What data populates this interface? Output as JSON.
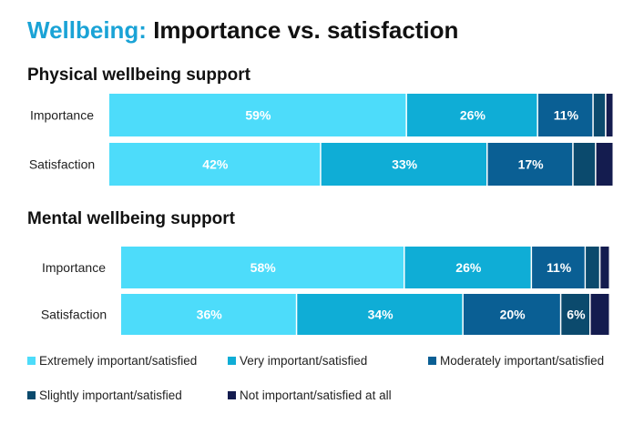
{
  "title": {
    "accent": "Wellbeing:",
    "rest": "Importance vs. satisfaction"
  },
  "colors": {
    "accent": "#1aa3d6",
    "segments": [
      "#4ddcfa",
      "#0fadd6",
      "#0a5f94",
      "#0b4a6d",
      "#141c4f"
    ]
  },
  "legend": [
    "Extremely important/satisfied",
    "Very important/satisfied",
    "Moderately important/satisfied",
    "Slightly important/satisfied",
    "Not important/satisfied at all"
  ],
  "chart_data": [
    {
      "type": "bar",
      "orientation": "horizontal",
      "stacked": true,
      "title": "Physical wellbeing support",
      "categories": [
        "Importance",
        "Satisfaction"
      ],
      "series": [
        {
          "name": "Extremely important/satisfied",
          "values": [
            59,
            42
          ],
          "labels": [
            "59%",
            "42%"
          ]
        },
        {
          "name": "Very important/satisfied",
          "values": [
            26,
            33
          ],
          "labels": [
            "26%",
            "33%"
          ]
        },
        {
          "name": "Moderately important/satisfied",
          "values": [
            11,
            17
          ],
          "labels": [
            "11%",
            "17%"
          ]
        },
        {
          "name": "Slightly important/satisfied",
          "values": [
            2.5,
            4.5
          ],
          "labels": [
            "",
            ""
          ]
        },
        {
          "name": "Not important/satisfied at all",
          "values": [
            1.5,
            3.5
          ],
          "labels": [
            "",
            ""
          ]
        }
      ],
      "xlim": [
        0,
        100
      ],
      "grid": false,
      "legend_position": "bottom"
    },
    {
      "type": "bar",
      "orientation": "horizontal",
      "stacked": true,
      "title": "Mental wellbeing support",
      "categories": [
        "Importance",
        "Satisfaction"
      ],
      "series": [
        {
          "name": "Extremely important/satisfied",
          "values": [
            58,
            36
          ],
          "labels": [
            "58%",
            "36%"
          ]
        },
        {
          "name": "Very important/satisfied",
          "values": [
            26,
            34
          ],
          "labels": [
            "26%",
            "34%"
          ]
        },
        {
          "name": "Moderately important/satisfied",
          "values": [
            11,
            20
          ],
          "labels": [
            "11%",
            "20%"
          ]
        },
        {
          "name": "Slightly important/satisfied",
          "values": [
            3,
            6
          ],
          "labels": [
            "",
            "6%"
          ]
        },
        {
          "name": "Not important/satisfied at all",
          "values": [
            2,
            4
          ],
          "labels": [
            "",
            ""
          ]
        }
      ],
      "xlim": [
        0,
        100
      ],
      "grid": false,
      "legend_position": "bottom"
    }
  ]
}
